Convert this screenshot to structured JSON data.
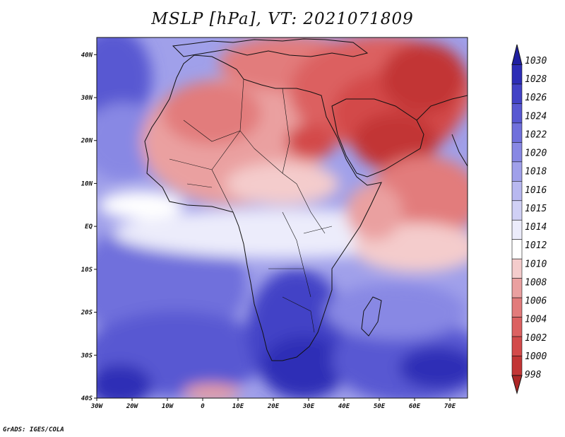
{
  "title": "MSLP [hPa], VT: 2021071809",
  "footer": "GrADS: IGES/COLA",
  "colors": {
    "levels": [
      "#ad2626",
      "#c23535",
      "#d34a4a",
      "#dc6161",
      "#e27b7b",
      "#eaa0a0",
      "#f4cccc",
      "#ffffff",
      "#ececfb",
      "#d0d0f5",
      "#b8b8f0",
      "#a0a0ea",
      "#8888e4",
      "#7070dc",
      "#5858d2",
      "#4242c6",
      "#2d2db6",
      "#1f1fa0"
    ]
  },
  "map": {
    "lon_labels": [
      "30W",
      "20W",
      "10W",
      "0",
      "10E",
      "20E",
      "30E",
      "40E",
      "50E",
      "60E",
      "70E"
    ],
    "lat_labels": [
      "40N",
      "30N",
      "20N",
      "10N",
      "EQ",
      "10S",
      "20S",
      "30S",
      "40S"
    ],
    "lon_range": [
      -30,
      75
    ],
    "lat_range": [
      -40,
      44
    ]
  },
  "chart_data": {
    "type": "heatmap",
    "title": "MSLP [hPa], VT: 2021071809",
    "variable": "Mean sea level pressure",
    "units": "hPa",
    "valid_time": "2021071809",
    "colorbar_levels": [
      "1030",
      "1028",
      "1026",
      "1024",
      "1022",
      "1020",
      "1018",
      "1016",
      "1015",
      "1014",
      "1012",
      "1010",
      "1008",
      "1006",
      "1004",
      "1002",
      "1000",
      "998"
    ],
    "lon_range": [
      -30,
      75
    ],
    "lat_range": [
      -40,
      44
    ]
  }
}
